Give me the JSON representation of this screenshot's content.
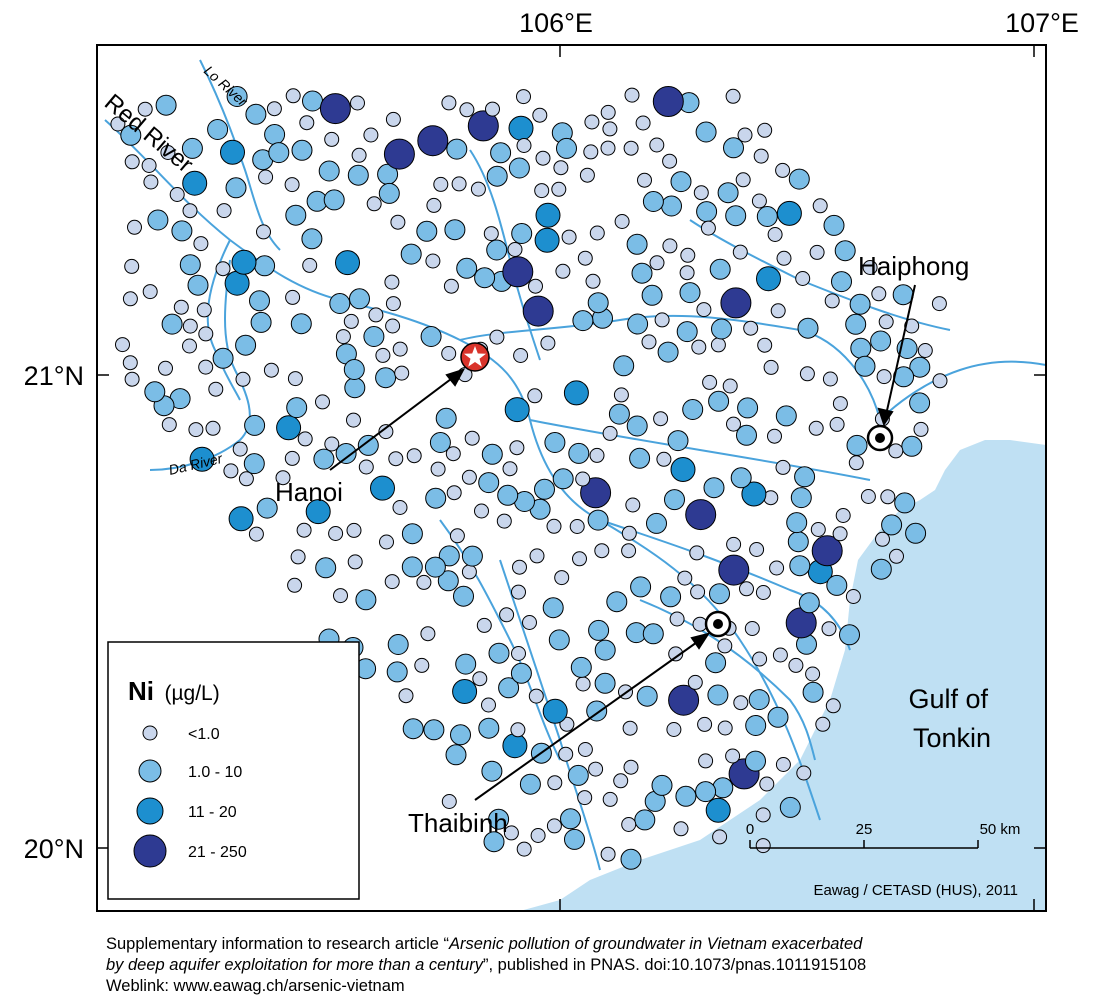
{
  "map": {
    "graticule": {
      "lon_labels": [
        "106°E",
        "107°E"
      ],
      "lat_labels": [
        "21°N",
        "20°N"
      ]
    },
    "rivers": [
      "Lo River",
      "Red River",
      "Da River"
    ],
    "cities": [
      {
        "name": "Hanoi",
        "marker": "star-icon"
      },
      {
        "name": "Haiphong",
        "marker": "bullseye-icon"
      },
      {
        "name": "Thaibinh",
        "marker": "bullseye-icon"
      }
    ],
    "sea_label": [
      "Gulf of",
      "Tonkin"
    ],
    "colors": {
      "sea": "#bfe0f3",
      "river": "#4aa3dc",
      "land": "#ffffff",
      "frame": "#000000",
      "hanoi_marker": "#d9342b"
    },
    "scale_bar": {
      "ticks": [
        "0",
        "25",
        "50 km"
      ]
    },
    "credit": "Eawag / CETASD (HUS), 2011"
  },
  "legend": {
    "element": "Ni",
    "unit": "(µg/L)",
    "classes": [
      {
        "label": "<1.0",
        "color": "#c9d6ec",
        "size": "small"
      },
      {
        "label": "1.0 - 10",
        "color": "#7bbde6",
        "size": "medium"
      },
      {
        "label": "11 - 20",
        "color": "#1d8fcf",
        "size": "large"
      },
      {
        "label": "21 - 250",
        "color": "#2e3a92",
        "size": "xlarge"
      }
    ]
  },
  "caption": {
    "prefix": "Supplementary information to research article “",
    "title_line1": "Arsenic pollution of groundwater in Vietnam exacerbated",
    "title_line2": "by deep aquifer exploitation for more than a century",
    "suffix": "”, published in PNAS. doi:10.1073/pnas.1011915108",
    "weblink": "Weblink: www.eawag.ch/arsenic-vietnam"
  }
}
